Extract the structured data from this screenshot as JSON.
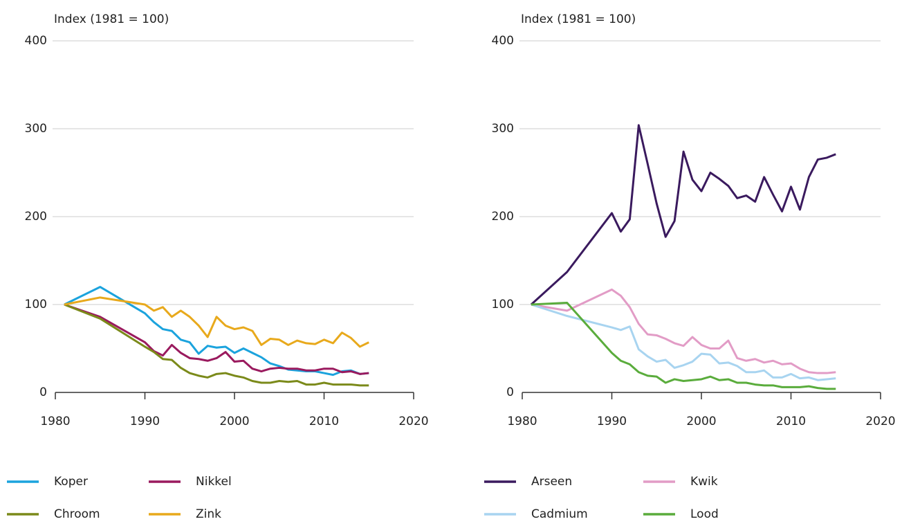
{
  "chart_data": [
    {
      "type": "line",
      "y_label": "Index (1981 = 100)",
      "x": [
        1981,
        1985,
        1990,
        1991,
        1992,
        1993,
        1994,
        1995,
        1996,
        1997,
        1998,
        1999,
        2000,
        2001,
        2002,
        2003,
        2004,
        2005,
        2006,
        2007,
        2008,
        2009,
        2010,
        2011,
        2012,
        2013,
        2014,
        2015
      ],
      "xlim": [
        1980,
        2020
      ],
      "xticks": [
        1980,
        1990,
        2000,
        2010,
        2020
      ],
      "ylim": [
        0,
        400
      ],
      "yticks": [
        0,
        100,
        200,
        300,
        400
      ],
      "grid": true,
      "series": [
        {
          "name": "Koper",
          "color": "#1ba3dd",
          "values": [
            100,
            120,
            90,
            80,
            72,
            70,
            60,
            57,
            44,
            53,
            51,
            52,
            45,
            50,
            45,
            40,
            33,
            30,
            26,
            25,
            24,
            24,
            22,
            20,
            24,
            25,
            21,
            22
          ]
        },
        {
          "name": "Nikkel",
          "color": "#9a1a5e",
          "values": [
            100,
            86,
            57,
            47,
            42,
            54,
            45,
            39,
            38,
            36,
            39,
            46,
            35,
            36,
            27,
            24,
            27,
            28,
            27,
            27,
            25,
            25,
            27,
            27,
            23,
            24,
            21,
            22
          ]
        },
        {
          "name": "Chroom",
          "color": "#7b8a1a",
          "values": [
            100,
            84,
            52,
            46,
            38,
            37,
            28,
            22,
            19,
            17,
            21,
            22,
            19,
            17,
            13,
            11,
            11,
            13,
            12,
            13,
            9,
            9,
            11,
            9,
            9,
            9,
            8,
            8
          ]
        },
        {
          "name": "Zink",
          "color": "#e8a91c",
          "values": [
            100,
            108,
            100,
            93,
            97,
            86,
            93,
            86,
            76,
            63,
            86,
            76,
            72,
            74,
            70,
            54,
            61,
            60,
            54,
            59,
            56,
            55,
            60,
            56,
            68,
            62,
            52,
            57
          ]
        }
      ]
    },
    {
      "type": "line",
      "y_label": "Index (1981 = 100)",
      "x": [
        1981,
        1985,
        1990,
        1991,
        1992,
        1993,
        1994,
        1995,
        1996,
        1997,
        1998,
        1999,
        2000,
        2001,
        2002,
        2003,
        2004,
        2005,
        2006,
        2007,
        2008,
        2009,
        2010,
        2011,
        2012,
        2013,
        2014,
        2015
      ],
      "xlim": [
        1980,
        2020
      ],
      "xticks": [
        1980,
        1990,
        2000,
        2010,
        2020
      ],
      "ylim": [
        0,
        400
      ],
      "yticks": [
        0,
        100,
        200,
        300,
        400
      ],
      "grid": true,
      "series": [
        {
          "name": "Arseen",
          "color": "#3a1a5e",
          "values": [
            100,
            137,
            204,
            183,
            197,
            304,
            260,
            215,
            177,
            195,
            274,
            242,
            229,
            250,
            243,
            235,
            221,
            224,
            217,
            245,
            225,
            206,
            234,
            208,
            245,
            265,
            267,
            271
          ]
        },
        {
          "name": "Kwik",
          "color": "#e29cc6",
          "values": [
            100,
            93,
            117,
            110,
            97,
            78,
            66,
            65,
            61,
            56,
            53,
            63,
            54,
            50,
            50,
            59,
            39,
            36,
            38,
            34,
            36,
            32,
            33,
            27,
            23,
            22,
            22,
            23
          ]
        },
        {
          "name": "Cadmium",
          "color": "#a8d4f0",
          "values": [
            100,
            87,
            74,
            71,
            75,
            49,
            41,
            35,
            37,
            28,
            31,
            35,
            44,
            43,
            33,
            34,
            30,
            23,
            23,
            25,
            17,
            17,
            21,
            16,
            17,
            14,
            15,
            16
          ]
        },
        {
          "name": "Lood",
          "color": "#5aac3c",
          "values": [
            100,
            102,
            45,
            36,
            32,
            23,
            19,
            18,
            11,
            15,
            13,
            14,
            15,
            18,
            14,
            15,
            11,
            11,
            9,
            8,
            8,
            6,
            6,
            6,
            7,
            5,
            4,
            4
          ]
        }
      ]
    }
  ]
}
